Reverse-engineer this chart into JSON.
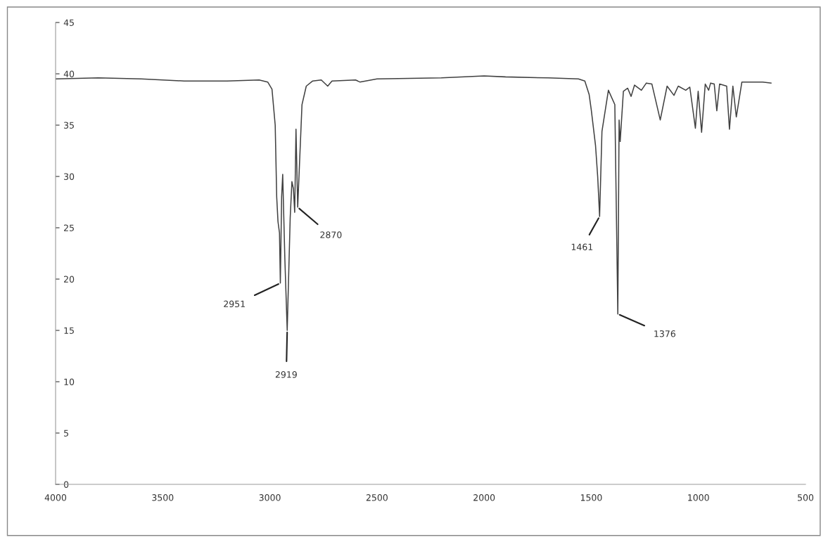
{
  "chart_data": {
    "type": "line",
    "x": [
      4000,
      3800,
      3600,
      3400,
      3200,
      3050,
      3010,
      2990,
      2975,
      2968,
      2962,
      2955,
      2951,
      2945,
      2940,
      2930,
      2919,
      2905,
      2897,
      2890,
      2884,
      2878,
      2870,
      2860,
      2850,
      2830,
      2800,
      2760,
      2730,
      2710,
      2600,
      2580,
      2500,
      2200,
      2000,
      1900,
      1700,
      1560,
      1530,
      1510,
      1500,
      1480,
      1470,
      1461,
      1450,
      1420,
      1390,
      1376,
      1370,
      1365,
      1350,
      1330,
      1314,
      1298,
      1266,
      1243,
      1217,
      1178,
      1146,
      1114,
      1094,
      1059,
      1040,
      1014,
      1001,
      985,
      968,
      952,
      943,
      926,
      914,
      901,
      868,
      855,
      839,
      823,
      797,
      700,
      661
    ],
    "series": [
      {
        "color": "#404040",
        "values": [
          39.5,
          39.6,
          39.5,
          39.3,
          39.3,
          39.4,
          39.2,
          38.5,
          35,
          28,
          25.6,
          24.5,
          19.6,
          28,
          30.2,
          22,
          15.0,
          26,
          29.5,
          28.8,
          26.5,
          34.6,
          27.0,
          32,
          37,
          38.8,
          39.3,
          39.4,
          38.8,
          39.3,
          39.4,
          39.2,
          39.5,
          39.6,
          39.8,
          39.7,
          39.6,
          39.5,
          39.3,
          38,
          36.5,
          33,
          30,
          26.1,
          34.4,
          38.4,
          37,
          16.6,
          35.5,
          33.4,
          38.3,
          38.6,
          37.8,
          38.9,
          38.4,
          39.1,
          39.0,
          35.5,
          38.8,
          37.9,
          38.8,
          38.4,
          38.7,
          34.7,
          38.3,
          34.3,
          39.0,
          38.4,
          39.1,
          39.0,
          36.4,
          39.0,
          38.8,
          34.6,
          38.8,
          35.8,
          39.2,
          39.2,
          39.1
        ]
      }
    ],
    "xlim": [
      4000,
      500
    ],
    "xticks": [
      4000,
      3500,
      3000,
      2500,
      2000,
      1500,
      1000,
      500
    ],
    "ylim": [
      0,
      45
    ],
    "yticks": [
      0,
      5,
      10,
      15,
      20,
      25,
      30,
      35,
      40,
      45
    ],
    "grid": false,
    "marker": "none",
    "line_style": "solid",
    "annotations": [
      {
        "text": "2951",
        "x": 2951,
        "y": 19.6
      },
      {
        "text": "2919",
        "x": 2919,
        "y": 15.0
      },
      {
        "text": "2870",
        "x": 2870,
        "y": 27.0
      },
      {
        "text": "1461",
        "x": 1461,
        "y": 26.1
      },
      {
        "text": "1376",
        "x": 1376,
        "y": 16.6
      }
    ]
  }
}
